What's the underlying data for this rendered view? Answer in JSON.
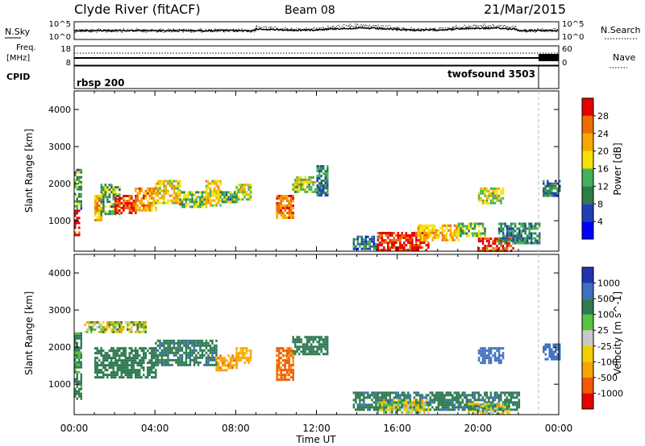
{
  "header": {
    "station": "Clyde River (fitACF)",
    "beam": "Beam 08",
    "date": "21/Mar/2015"
  },
  "noise_panel": {
    "left_label": "N.Sky",
    "right_label": "N.Search",
    "ticks_left": [
      "10^5",
      "10^0"
    ],
    "ticks_right": [
      "10^5",
      "10^0"
    ]
  },
  "freq_panel": {
    "left_label_1": "Freq.",
    "left_label_2": "[MHz]",
    "right_label": "Nave",
    "ticks_left": [
      "18",
      "8"
    ],
    "ticks_right": [
      "60",
      "0"
    ]
  },
  "cpid_panel": {
    "label": "CPID",
    "modes": [
      {
        "name": "rbsp 200",
        "start_hour": 0
      },
      {
        "name": "twofsound 3503",
        "start_hour": 23
      }
    ]
  },
  "colorbars": {
    "power": {
      "title": "Power [dB]",
      "ticks": [
        "4",
        "8",
        "12",
        "16",
        "20",
        "24",
        "28"
      ],
      "colors": [
        "#0000ff",
        "#1f3fb8",
        "#2c7d48",
        "#44b05a",
        "#f6e100",
        "#f4a800",
        "#ec6c00",
        "#e40000"
      ]
    },
    "velocity": {
      "title": "Velocity [m s^-1]",
      "ticks": [
        "-1000",
        "-500",
        "-100",
        "-25",
        "25",
        "100",
        "500",
        "1000"
      ],
      "colors": [
        "#e80000",
        "#f05a00",
        "#f5a300",
        "#f3cf00",
        "#c8c8c8",
        "#55c43f",
        "#2f7a52",
        "#3f6fbf",
        "#2233b0"
      ]
    }
  },
  "chart_data": [
    {
      "type": "heatmap",
      "title": "",
      "quantity": "Power [dB]",
      "xlabel": "",
      "ylabel": "Slant Range [km]",
      "xlim_hours": [
        0,
        24
      ],
      "ylim": [
        180,
        4500
      ],
      "yticks": [
        1000,
        2000,
        3000,
        4000
      ],
      "value_range": [
        0,
        30
      ],
      "regions": [
        {
          "t0": 0.0,
          "t1": 0.25,
          "r0": 600,
          "r1": 1300,
          "value": 30
        },
        {
          "t0": 0.0,
          "t1": 0.3,
          "r0": 1300,
          "r1": 2400,
          "value": 12
        },
        {
          "t0": 1.0,
          "t1": 1.3,
          "r0": 1000,
          "r1": 1700,
          "value": 20
        },
        {
          "t0": 1.3,
          "t1": 2.2,
          "r0": 1200,
          "r1": 2000,
          "value": 12
        },
        {
          "t0": 2.0,
          "t1": 3.0,
          "r0": 1200,
          "r1": 1700,
          "value": 26
        },
        {
          "t0": 3.0,
          "t1": 4.0,
          "r0": 1300,
          "r1": 1900,
          "value": 22
        },
        {
          "t0": 4.0,
          "t1": 5.2,
          "r0": 1500,
          "r1": 2100,
          "value": 18
        },
        {
          "t0": 5.2,
          "t1": 6.5,
          "r0": 1400,
          "r1": 1800,
          "value": 14
        },
        {
          "t0": 6.5,
          "t1": 7.2,
          "r0": 1400,
          "r1": 2100,
          "value": 18
        },
        {
          "t0": 7.2,
          "t1": 8.0,
          "r0": 1500,
          "r1": 1800,
          "value": 12
        },
        {
          "t0": 8.0,
          "t1": 8.7,
          "r0": 1600,
          "r1": 2000,
          "value": 16
        },
        {
          "t0": 10.0,
          "t1": 10.8,
          "r0": 1100,
          "r1": 1700,
          "value": 24
        },
        {
          "t0": 10.8,
          "t1": 12.0,
          "r0": 1800,
          "r1": 2200,
          "value": 16
        },
        {
          "t0": 12.0,
          "t1": 12.5,
          "r0": 1700,
          "r1": 2500,
          "value": 10
        },
        {
          "t0": 13.8,
          "t1": 15.0,
          "r0": 250,
          "r1": 600,
          "value": 8
        },
        {
          "t0": 15.0,
          "t1": 17.5,
          "r0": 200,
          "r1": 700,
          "value": 28
        },
        {
          "t0": 17.0,
          "t1": 19.0,
          "r0": 500,
          "r1": 900,
          "value": 20
        },
        {
          "t0": 19.0,
          "t1": 20.3,
          "r0": 600,
          "r1": 950,
          "value": 14
        },
        {
          "t0": 20.0,
          "t1": 21.7,
          "r0": 200,
          "r1": 550,
          "value": 27
        },
        {
          "t0": 21.0,
          "t1": 23.0,
          "r0": 400,
          "r1": 950,
          "value": 10
        },
        {
          "t0": 20.0,
          "t1": 21.2,
          "r0": 1500,
          "r1": 1900,
          "value": 16
        },
        {
          "t0": 23.2,
          "t1": 24.0,
          "r0": 1700,
          "r1": 2100,
          "value": 8
        }
      ]
    },
    {
      "type": "heatmap",
      "title": "",
      "quantity": "Velocity [m s^-1]",
      "xlabel": "Time UT",
      "ylabel": "Slant Range [km]",
      "xlim_hours": [
        0,
        24
      ],
      "ylim": [
        180,
        4500
      ],
      "xticks": [
        "00:00",
        "04:00",
        "08:00",
        "12:00",
        "16:00",
        "20:00",
        "00:00"
      ],
      "yticks": [
        1000,
        2000,
        3000,
        4000
      ],
      "value_range": [
        -1000,
        1000
      ],
      "regions": [
        {
          "t0": 0.0,
          "t1": 0.3,
          "r0": 600,
          "r1": 2400,
          "value": 200
        },
        {
          "t0": 0.5,
          "t1": 3.5,
          "r0": 2400,
          "r1": 2700,
          "value": 0
        },
        {
          "t0": 1.0,
          "t1": 4.0,
          "r0": 1200,
          "r1": 2000,
          "value": 300
        },
        {
          "t0": 4.0,
          "t1": 7.0,
          "r0": 1500,
          "r1": 2200,
          "value": 400
        },
        {
          "t0": 7.0,
          "t1": 8.0,
          "r0": 1400,
          "r1": 1800,
          "value": -400
        },
        {
          "t0": 8.0,
          "t1": 8.7,
          "r0": 1600,
          "r1": 2000,
          "value": -200
        },
        {
          "t0": 10.0,
          "t1": 10.8,
          "r0": 1100,
          "r1": 2000,
          "value": -600
        },
        {
          "t0": 10.8,
          "t1": 12.5,
          "r0": 1800,
          "r1": 2300,
          "value": 300
        },
        {
          "t0": 13.8,
          "t1": 22.0,
          "r0": 300,
          "r1": 800,
          "value": 400
        },
        {
          "t0": 15.0,
          "t1": 17.5,
          "r0": 250,
          "r1": 600,
          "value": 0
        },
        {
          "t0": 19.5,
          "t1": 21.5,
          "r0": 200,
          "r1": 500,
          "value": 0
        },
        {
          "t0": 20.0,
          "t1": 21.2,
          "r0": 1600,
          "r1": 2000,
          "value": 700
        },
        {
          "t0": 23.2,
          "t1": 24.0,
          "r0": 1700,
          "r1": 2100,
          "value": 800
        }
      ]
    }
  ]
}
